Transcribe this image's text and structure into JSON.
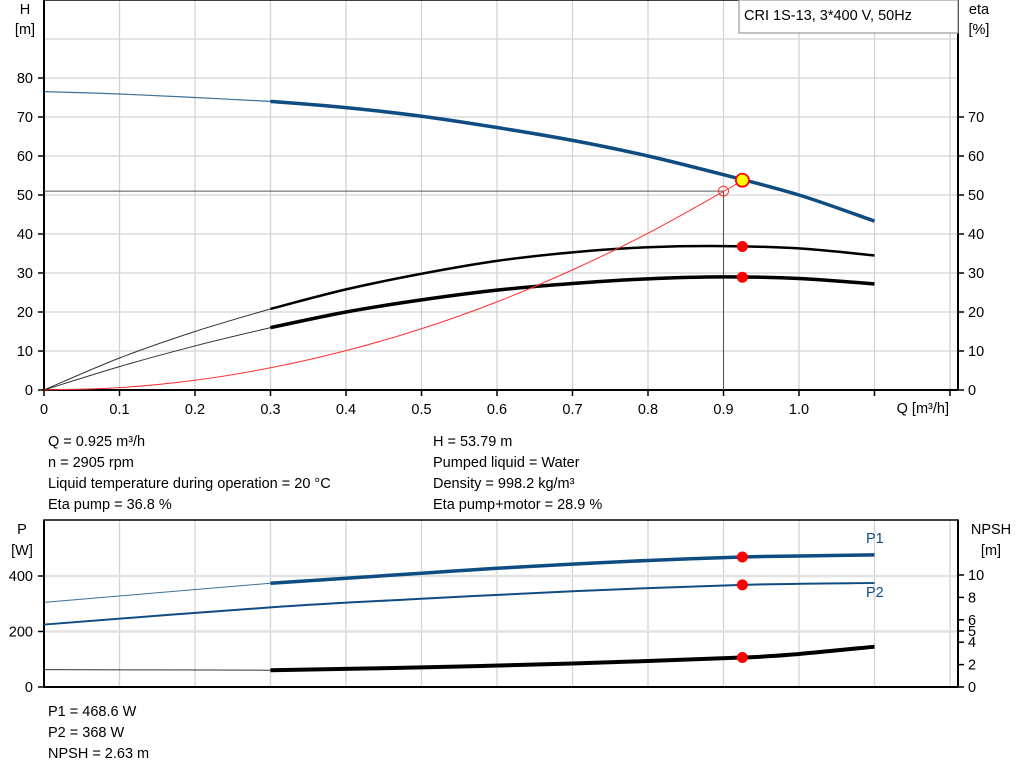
{
  "title_box": "CRI 1S-13, 3*400 V, 50Hz",
  "colors": {
    "head": "#0f4c81",
    "power": "#0f4c81",
    "eta": "#000000",
    "system": "#ff3030",
    "point": "#ff0000",
    "duty_point": "#ffff00"
  },
  "chart_data": [
    {
      "type": "line",
      "xlabel": "Q [m³/h]",
      "ylabel_left": [
        "H",
        "[m]"
      ],
      "ylabel_right": [
        "eta",
        "[%]"
      ],
      "xlim": [
        0,
        1.2
      ],
      "ylim": [
        0,
        100
      ],
      "x_ticks": [
        "0",
        "0.1",
        "0.2",
        "0.3",
        "0.4",
        "0.5",
        "0.6",
        "0.7",
        "0.8",
        "0.9",
        "1.0"
      ],
      "x_tick_values": [
        0,
        0.1,
        0.2,
        0.3,
        0.4,
        0.5,
        0.6,
        0.7,
        0.8,
        0.9,
        1.0
      ],
      "y_left_ticks": [
        0,
        10,
        20,
        30,
        40,
        50,
        60,
        70,
        80
      ],
      "y_right_ticks": [
        0,
        10,
        20,
        30,
        40,
        50,
        60,
        70
      ],
      "grid": true,
      "series": [
        {
          "key": "head",
          "thick_from": 0.3,
          "x": [
            0,
            0.1,
            0.2,
            0.3,
            0.4,
            0.5,
            0.6,
            0.7,
            0.8,
            0.9,
            1.0,
            1.1
          ],
          "y": [
            76.5,
            75.9,
            75.0,
            74.0,
            72.4,
            70.2,
            67.3,
            64.0,
            60.0,
            55.2,
            50.0,
            43.3
          ]
        },
        {
          "key": "eta_pump",
          "thick_from": 0.3,
          "x": [
            0,
            0.1,
            0.2,
            0.3,
            0.4,
            0.5,
            0.6,
            0.7,
            0.8,
            0.9,
            1.0,
            1.1
          ],
          "y": [
            0,
            8.2,
            15.0,
            20.8,
            25.8,
            29.8,
            33.1,
            35.3,
            36.6,
            36.9,
            36.3,
            34.5
          ]
        },
        {
          "key": "eta_pump_motor",
          "thick_from": 0.3,
          "x": [
            0,
            0.1,
            0.2,
            0.3,
            0.4,
            0.5,
            0.6,
            0.7,
            0.8,
            0.9,
            1.0,
            1.1
          ],
          "y": [
            0,
            6.0,
            11.3,
            16.0,
            20.0,
            23.1,
            25.6,
            27.3,
            28.5,
            29.0,
            28.6,
            27.2
          ]
        },
        {
          "key": "system",
          "x": [
            0,
            0.1,
            0.2,
            0.3,
            0.4,
            0.5,
            0.6,
            0.7,
            0.8,
            0.9,
            0.925
          ],
          "y": [
            0,
            0.6,
            2.5,
            5.7,
            10.1,
            15.7,
            22.6,
            30.8,
            40.2,
            50.9,
            53.79
          ]
        }
      ],
      "operating_points": [
        {
          "key": "head",
          "x": 0.925,
          "y": 53.79
        },
        {
          "key": "eta_pump",
          "x": 0.925,
          "y": 36.8
        },
        {
          "key": "eta_pump_motor",
          "x": 0.925,
          "y": 28.9
        }
      ],
      "requested_point": {
        "x": 0.9,
        "y": 51
      }
    },
    {
      "type": "line",
      "ylabel_left": [
        "P",
        "[W]"
      ],
      "ylabel_right": [
        "NPSH",
        "[m]"
      ],
      "xlim": [
        0,
        1.2
      ],
      "ylim_left": [
        0,
        600
      ],
      "y_left_ticks": [
        0,
        200,
        400
      ],
      "y_right_ticks": [
        0,
        2,
        4,
        5,
        6,
        8,
        10
      ],
      "grid": true,
      "series": [
        {
          "key": "P1",
          "name": "P1",
          "axis": "left",
          "thick_from": 0.3,
          "x": [
            0,
            0.3,
            0.4,
            0.5,
            0.6,
            0.7,
            0.8,
            0.925,
            1.0,
            1.1
          ],
          "y": [
            305,
            374,
            392,
            410,
            428,
            443,
            456,
            468.6,
            472,
            476
          ]
        },
        {
          "key": "P2",
          "name": "P2",
          "axis": "left",
          "x": [
            0,
            0.3,
            0.5,
            0.7,
            0.925,
            1.1
          ],
          "y": [
            225,
            287,
            318,
            345,
            368,
            375
          ]
        },
        {
          "key": "NPSH",
          "axis": "right",
          "thick_from": 0.3,
          "x": [
            0,
            0.3,
            0.5,
            0.7,
            0.925,
            1.0,
            1.1
          ],
          "y": [
            1.55,
            1.5,
            1.75,
            2.1,
            2.63,
            2.95,
            3.6
          ]
        }
      ],
      "operating_points": [
        {
          "key": "P1",
          "x": 0.925,
          "y": 468.6
        },
        {
          "key": "P2",
          "x": 0.925,
          "y": 368
        },
        {
          "key": "NPSH",
          "x": 0.925,
          "y": 2.63
        }
      ]
    }
  ],
  "info": {
    "q": "Q = 0.925 m³/h",
    "n": "n = 2905 rpm",
    "temp": "Liquid temperature during operation = 20 °C",
    "eta_pump": "Eta pump = 36.8 %",
    "h": "H = 53.79 m",
    "liquid": "Pumped liquid = Water",
    "density": "Density = 998.2 kg/m³",
    "eta_total": "Eta pump+motor = 28.9 %"
  },
  "power_info": {
    "p1": "P1 = 468.6 W",
    "p2": "P2 = 368 W",
    "npsh": "NPSH = 2.63 m"
  }
}
